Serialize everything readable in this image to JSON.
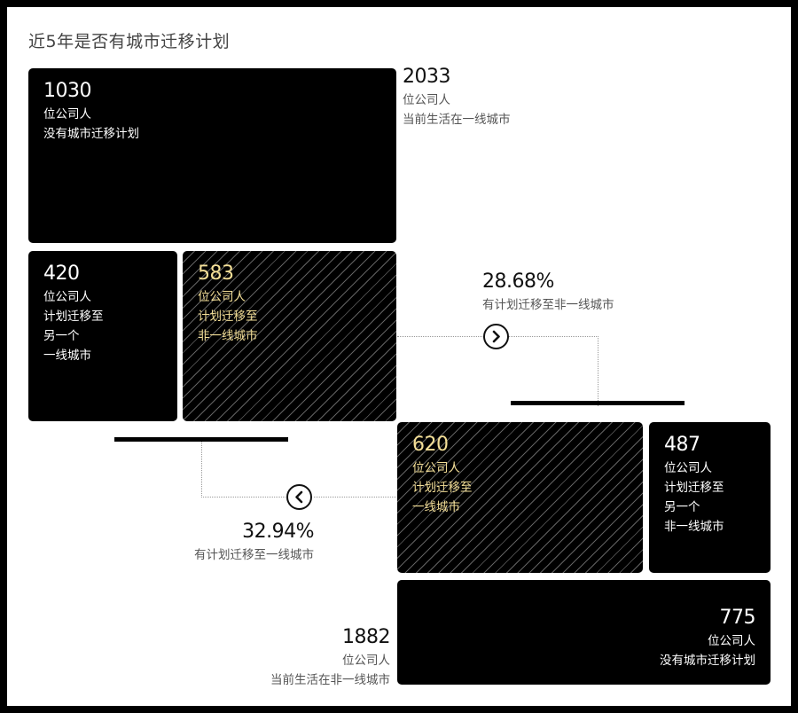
{
  "title": "近5年是否有城市迁移计划",
  "top_group": {
    "total": {
      "value": "2033",
      "unit": "位公司人",
      "desc": "当前生活在一线城市"
    },
    "no_plan": {
      "value": "1030",
      "unit": "位公司人",
      "desc": "没有城市迁移计划"
    },
    "to_other_tier1": {
      "value": "420",
      "unit": "位公司人",
      "desc_lines": [
        "计划迁移至",
        "另一个",
        "一线城市"
      ]
    },
    "to_non_tier1": {
      "value": "583",
      "unit": "位公司人",
      "desc_lines": [
        "计划迁移至",
        "非一线城市"
      ]
    },
    "percent": {
      "value": "28.68%",
      "desc": "有计划迁移至非一线城市"
    }
  },
  "bottom_group": {
    "total": {
      "value": "1882",
      "unit": "位公司人",
      "desc": "当前生活在非一线城市"
    },
    "no_plan": {
      "value": "775",
      "unit": "位公司人",
      "desc": "没有城市迁移计划"
    },
    "to_tier1": {
      "value": "620",
      "unit": "位公司人",
      "desc_lines": [
        "计划迁移至",
        "一线城市"
      ]
    },
    "to_other_non_tier1": {
      "value": "487",
      "unit": "位公司人",
      "desc_lines": [
        "计划迁移至",
        "另一个",
        "非一线城市"
      ]
    },
    "percent": {
      "value": "32.94%",
      "desc": "有计划迁移至一线城市"
    }
  },
  "icons": {
    "right_arrow": "chevron-right-circle-icon",
    "left_arrow": "chevron-left-circle-icon"
  },
  "colors": {
    "box": "#000000",
    "highlight_text": "#f4df97",
    "background": "#ffffff"
  }
}
